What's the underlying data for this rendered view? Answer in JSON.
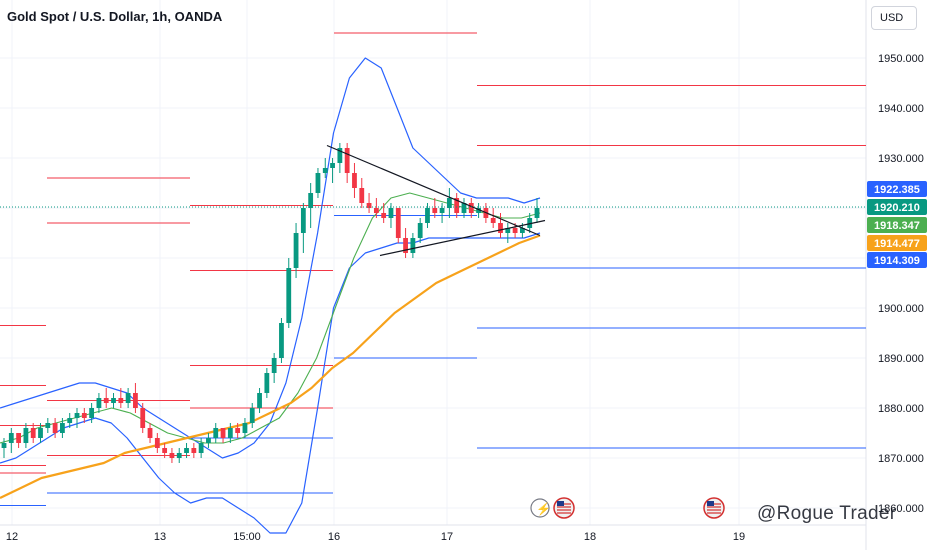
{
  "chart_title": "Gold Spot / U.S. Dollar, 1h, OANDA",
  "currency_button": "USD",
  "watermark": "@Rogue Trader",
  "colors": {
    "up": "#089981",
    "down": "#f23645",
    "bb": "#2962ff",
    "ma_green": "#4caf50",
    "ma_orange": "#f7a21b",
    "resist": "#f23645",
    "support": "#2962ff",
    "grid": "#f0f3fa"
  },
  "chart_data": {
    "type": "candlestick",
    "y_ticks": [
      "1950.000",
      "1940.000",
      "1930.000",
      "1920.000",
      "1910.000",
      "1900.000",
      "1890.000",
      "1880.000",
      "1870.000",
      "1860.000"
    ],
    "x_ticks": [
      "12",
      "13",
      "15:00",
      "16",
      "17",
      "18",
      "19"
    ],
    "price_labels": [
      {
        "text": "1922.385",
        "value": 1922.385,
        "color": "#2962ff"
      },
      {
        "text": "1920.210",
        "value": 1920.21,
        "color": "#089981"
      },
      {
        "text": "1918.347",
        "value": 1918.347,
        "color": "#4caf50"
      },
      {
        "text": "1914.477",
        "value": 1914.477,
        "color": "#f7a21b"
      },
      {
        "text": "1914.309",
        "value": 1914.309,
        "color": "#2962ff"
      }
    ],
    "last_price": 1920.21,
    "candles": [
      [
        1872,
        1874,
        1870,
        1873
      ],
      [
        1873,
        1876,
        1871,
        1875
      ],
      [
        1875,
        1875,
        1872,
        1873
      ],
      [
        1873,
        1877,
        1872,
        1876
      ],
      [
        1876,
        1877,
        1873,
        1874
      ],
      [
        1874,
        1877,
        1873,
        1876
      ],
      [
        1876,
        1878,
        1875,
        1877
      ],
      [
        1877,
        1878,
        1874,
        1875
      ],
      [
        1875,
        1878,
        1874,
        1877
      ],
      [
        1877,
        1879,
        1876,
        1878
      ],
      [
        1878,
        1880,
        1876,
        1879
      ],
      [
        1879,
        1880,
        1877,
        1878
      ],
      [
        1878,
        1881,
        1877,
        1880
      ],
      [
        1880,
        1883,
        1879,
        1882
      ],
      [
        1882,
        1884,
        1880,
        1881
      ],
      [
        1881,
        1883,
        1880,
        1882
      ],
      [
        1882,
        1884,
        1880,
        1881
      ],
      [
        1881,
        1884,
        1880,
        1883
      ],
      [
        1883,
        1885,
        1879,
        1880
      ],
      [
        1880,
        1881,
        1875,
        1876
      ],
      [
        1876,
        1877,
        1873,
        1874
      ],
      [
        1874,
        1875,
        1871,
        1872
      ],
      [
        1872,
        1873,
        1870,
        1871
      ],
      [
        1871,
        1872,
        1869,
        1870
      ],
      [
        1870,
        1872,
        1869,
        1871
      ],
      [
        1871,
        1873,
        1870,
        1872
      ],
      [
        1872,
        1873,
        1870,
        1871
      ],
      [
        1871,
        1874,
        1870,
        1873
      ],
      [
        1873,
        1875,
        1872,
        1874
      ],
      [
        1874,
        1877,
        1873,
        1876
      ],
      [
        1876,
        1876,
        1873,
        1874
      ],
      [
        1874,
        1877,
        1873,
        1876
      ],
      [
        1876,
        1877,
        1874,
        1875
      ],
      [
        1875,
        1878,
        1874,
        1877
      ],
      [
        1877,
        1881,
        1876,
        1880
      ],
      [
        1880,
        1884,
        1879,
        1883
      ],
      [
        1883,
        1888,
        1882,
        1887
      ],
      [
        1887,
        1891,
        1885,
        1890
      ],
      [
        1890,
        1898,
        1889,
        1897
      ],
      [
        1897,
        1910,
        1896,
        1908
      ],
      [
        1908,
        1917,
        1906,
        1915
      ],
      [
        1915,
        1921,
        1911,
        1920
      ],
      [
        1920,
        1925,
        1916,
        1923
      ],
      [
        1923,
        1928,
        1922,
        1927
      ],
      [
        1927,
        1930,
        1926,
        1928
      ],
      [
        1928,
        1930,
        1925,
        1929
      ],
      [
        1929,
        1933,
        1927,
        1932
      ],
      [
        1932,
        1933,
        1925,
        1927
      ],
      [
        1927,
        1929,
        1922,
        1924
      ],
      [
        1924,
        1926,
        1920,
        1921
      ],
      [
        1921,
        1923,
        1919,
        1920
      ],
      [
        1920,
        1922,
        1918,
        1919
      ],
      [
        1919,
        1921,
        1917,
        1918
      ],
      [
        1918,
        1921,
        1916,
        1920
      ],
      [
        1920,
        1920,
        1913,
        1914
      ],
      [
        1914,
        1916,
        1910,
        1911
      ],
      [
        1911,
        1915,
        1910,
        1914
      ],
      [
        1914,
        1918,
        1913,
        1917
      ],
      [
        1917,
        1921,
        1916,
        1920
      ],
      [
        1920,
        1922,
        1918,
        1919
      ],
      [
        1919,
        1921,
        1917,
        1920
      ],
      [
        1920,
        1924,
        1918,
        1922
      ],
      [
        1922,
        1923,
        1918,
        1919
      ],
      [
        1919,
        1922,
        1918,
        1921
      ],
      [
        1921,
        1922,
        1918,
        1919
      ],
      [
        1919,
        1921,
        1918,
        1920
      ],
      [
        1920,
        1921,
        1917,
        1918
      ],
      [
        1918,
        1920,
        1916,
        1917
      ],
      [
        1917,
        1919,
        1914,
        1915
      ],
      [
        1915,
        1917,
        1913,
        1916
      ],
      [
        1916,
        1917,
        1914,
        1915
      ],
      [
        1915,
        1917,
        1914,
        1916
      ],
      [
        1916,
        1919,
        1915,
        1918
      ],
      [
        1918,
        1922,
        1917,
        1920
      ]
    ],
    "bollinger_upper": [
      1880,
      1881,
      1882,
      1883,
      1884,
      1885,
      1885,
      1884,
      1883,
      1880,
      1878,
      1876,
      1874,
      1872,
      1870,
      1871,
      1873,
      1877,
      1885,
      1898,
      1915,
      1935,
      1946,
      1950,
      1948,
      1940,
      1932,
      1929,
      1926,
      1923,
      1922,
      1922,
      1922,
      1921,
      1922
    ],
    "bollinger_lower": [
      1869,
      1870,
      1872,
      1874,
      1876,
      1877,
      1878,
      1877,
      1874,
      1870,
      1866,
      1863,
      1861,
      1862,
      1862,
      1860,
      1858,
      1855,
      1855,
      1861,
      1880,
      1900,
      1908,
      1911,
      1912,
      1913,
      1913,
      1914,
      1914,
      1914,
      1914,
      1914,
      1914,
      1914,
      1915
    ],
    "ma_green": [
      1873,
      1874,
      1876,
      1877,
      1878,
      1879,
      1880,
      1879,
      1877,
      1875,
      1874,
      1873,
      1873,
      1874,
      1876,
      1878,
      1883,
      1890,
      1900,
      1910,
      1918,
      1922,
      1923,
      1922,
      1921,
      1920,
      1919,
      1918,
      1918,
      1919
    ],
    "ma_orange": [
      1862,
      1864,
      1866,
      1867,
      1868,
      1869,
      1871,
      1872,
      1873,
      1874,
      1875,
      1876,
      1877,
      1879,
      1881,
      1884,
      1888,
      1891,
      1895,
      1899,
      1902,
      1905,
      1907,
      1909,
      1911,
      1913,
      1914.5
    ],
    "resistance_levels": [
      1955,
      1944.5,
      1932.5,
      1926,
      1920.5,
      1917,
      1907.5,
      1888.5,
      1881.5,
      1880,
      1884.5,
      1876.5,
      1870.5,
      1868.5,
      1867,
      1896.5
    ],
    "support_levels": [
      1918.5,
      1908,
      1896,
      1890,
      1874,
      1872,
      1863,
      1860.5
    ]
  }
}
